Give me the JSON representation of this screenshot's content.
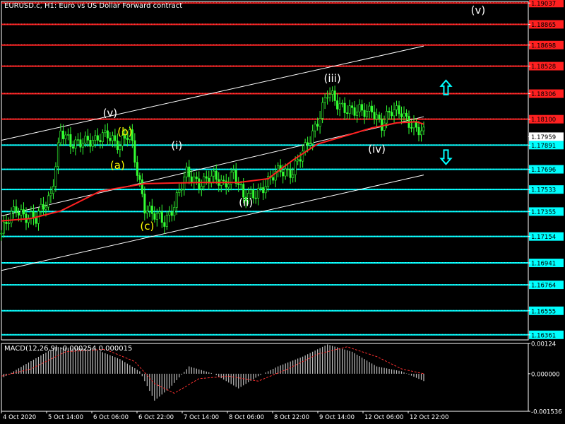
{
  "header": {
    "title": "EURUSD.c, H1:  Euro vs US Dollar Forward contract"
  },
  "macd_panel": {
    "title": "MACD(12,26,9) -0.000254 0.000015"
  },
  "colors": {
    "background": "#000000",
    "grid": "#2a2a2a",
    "axis": "#ffffff",
    "bull": "#33ff33",
    "bear": "#33ff33",
    "ma": "#ff2020",
    "resistance": "#ff2020",
    "support": "#00ffff",
    "channel": "#ffffff",
    "wave_main": "#ffffff",
    "wave_sub": "#ffff00",
    "macd_hist": "#c0c0c0",
    "macd_signal": "#ff3030"
  },
  "chart_data": {
    "type": "candlestick",
    "symbol": "EURUSD.c",
    "timeframe": "H1",
    "ylim": [
      1.1632,
      1.1905
    ],
    "price_tick_labels": [
      "1.19037",
      "1.18865",
      "1.18698",
      "1.18528",
      "1.18306",
      "1.18100",
      "1.17959",
      "1.17891",
      "1.17696",
      "1.17533",
      "1.17355",
      "1.17154",
      "1.16941",
      "1.16764",
      "1.16555",
      "1.16361"
    ],
    "time_tick_labels": [
      "4 Oct 2020",
      "5 Oct 14:00",
      "6 Oct 06:00",
      "6 Oct 22:00",
      "7 Oct 14:00",
      "8 Oct 06:00",
      "8 Oct 22:00",
      "9 Oct 14:00",
      "12 Oct 06:00",
      "12 Oct 22:00"
    ],
    "current_price": 1.17959,
    "resistance_levels": [
      1.19037,
      1.18865,
      1.18698,
      1.18528,
      1.18306,
      1.181
    ],
    "support_levels": [
      1.17891,
      1.17696,
      1.17533,
      1.17355,
      1.17154,
      1.16941,
      1.16764,
      1.16555,
      1.16361
    ],
    "close_path": [
      [
        0,
        1.1718
      ],
      [
        6,
        1.1738
      ],
      [
        14,
        1.1728
      ],
      [
        20,
        1.175
      ],
      [
        24,
        1.18
      ],
      [
        28,
        1.1788
      ],
      [
        33,
        1.1795
      ],
      [
        38,
        1.179
      ],
      [
        43,
        1.18
      ],
      [
        48,
        1.1788
      ],
      [
        52,
        1.1798
      ],
      [
        56,
        1.176
      ],
      [
        58,
        1.174
      ],
      [
        61,
        1.1732
      ],
      [
        66,
        1.1728
      ],
      [
        70,
        1.1742
      ],
      [
        75,
        1.1765
      ],
      [
        80,
        1.176
      ],
      [
        85,
        1.1762
      ],
      [
        90,
        1.1758
      ],
      [
        94,
        1.1768
      ],
      [
        98,
        1.1745
      ],
      [
        103,
        1.1752
      ],
      [
        108,
        1.1758
      ],
      [
        113,
        1.177
      ],
      [
        118,
        1.1768
      ],
      [
        123,
        1.1785
      ],
      [
        128,
        1.181
      ],
      [
        132,
        1.183
      ],
      [
        136,
        1.1822
      ],
      [
        140,
        1.182
      ],
      [
        144,
        1.1815
      ],
      [
        148,
        1.1815
      ],
      [
        150,
        1.182
      ],
      [
        154,
        1.1805
      ],
      [
        158,
        1.1815
      ],
      [
        162,
        1.1818
      ],
      [
        165,
        1.1808
      ],
      [
        168,
        1.18
      ],
      [
        171,
        1.1798
      ]
    ],
    "ma_path": [
      [
        0,
        1.1728
      ],
      [
        12,
        1.173
      ],
      [
        24,
        1.1736
      ],
      [
        40,
        1.1752
      ],
      [
        58,
        1.1758
      ],
      [
        80,
        1.1759
      ],
      [
        96,
        1.1759
      ],
      [
        108,
        1.1762
      ],
      [
        118,
        1.1777
      ],
      [
        128,
        1.179
      ],
      [
        140,
        1.1797
      ],
      [
        150,
        1.1803
      ],
      [
        160,
        1.1807
      ],
      [
        168,
        1.1808
      ],
      [
        171,
        1.1806
      ]
    ],
    "channel_lines": [
      [
        [
          0,
          1.1793
        ],
        [
          171,
          1.1869
        ]
      ],
      [
        [
          0,
          1.1732
        ],
        [
          171,
          1.1812
        ]
      ],
      [
        [
          0,
          1.1688
        ],
        [
          171,
          1.1765
        ]
      ]
    ],
    "wave_labels": [
      {
        "text": "(v)",
        "bar": 44,
        "price": 1.1812,
        "kind": "main"
      },
      {
        "text": "(b)",
        "bar": 50,
        "price": 1.1797,
        "kind": "sub"
      },
      {
        "text": "(a)",
        "bar": 47,
        "price": 1.177,
        "kind": "sub"
      },
      {
        "text": "(c)",
        "bar": 59,
        "price": 1.1721,
        "kind": "sub"
      },
      {
        "text": "(i)",
        "bar": 71,
        "price": 1.1786,
        "kind": "main"
      },
      {
        "text": "(ii)",
        "bar": 99,
        "price": 1.174,
        "kind": "main"
      },
      {
        "text": "(iii)",
        "bar": 134,
        "price": 1.184,
        "kind": "main"
      },
      {
        "text": "(iv)",
        "bar": 152,
        "price": 1.1783,
        "kind": "main"
      },
      {
        "text": "(v)",
        "bar": 193,
        "price": 1.1895,
        "kind": "main"
      }
    ],
    "arrows": [
      {
        "direction": "up",
        "bar": 180,
        "price": 1.1835
      },
      {
        "direction": "down",
        "bar": 180,
        "price": 1.178
      }
    ],
    "macd": {
      "value": -0.000254,
      "signal": 1.5e-05,
      "ylim": [
        -0.001536,
        0.00124
      ],
      "tick_labels": [
        "0.00124",
        "0.000000",
        "-0.001536"
      ],
      "hist_path": [
        [
          0,
          -0.0002
        ],
        [
          10,
          0.0004
        ],
        [
          22,
          0.0011
        ],
        [
          38,
          0.001
        ],
        [
          48,
          0.0006
        ],
        [
          56,
          0.0001
        ],
        [
          62,
          -0.0011
        ],
        [
          68,
          -0.0006
        ],
        [
          76,
          0.0003
        ],
        [
          86,
          0.0
        ],
        [
          96,
          -0.0006
        ],
        [
          104,
          -0.0001
        ],
        [
          112,
          0.0003
        ],
        [
          122,
          0.0007
        ],
        [
          132,
          0.0012
        ],
        [
          142,
          0.0009
        ],
        [
          152,
          0.0003
        ],
        [
          162,
          0.0001
        ],
        [
          171,
          -0.0003
        ]
      ],
      "signal_path": [
        [
          0,
          -0.0001
        ],
        [
          12,
          0.0002
        ],
        [
          26,
          0.0009
        ],
        [
          42,
          0.001
        ],
        [
          54,
          0.0005
        ],
        [
          62,
          -0.0004
        ],
        [
          70,
          -0.0008
        ],
        [
          80,
          -0.0002
        ],
        [
          92,
          -0.0001
        ],
        [
          104,
          -0.0003
        ],
        [
          116,
          0.0002
        ],
        [
          128,
          0.0008
        ],
        [
          140,
          0.0011
        ],
        [
          152,
          0.0007
        ],
        [
          162,
          0.0002
        ],
        [
          171,
          0.0
        ]
      ]
    }
  }
}
